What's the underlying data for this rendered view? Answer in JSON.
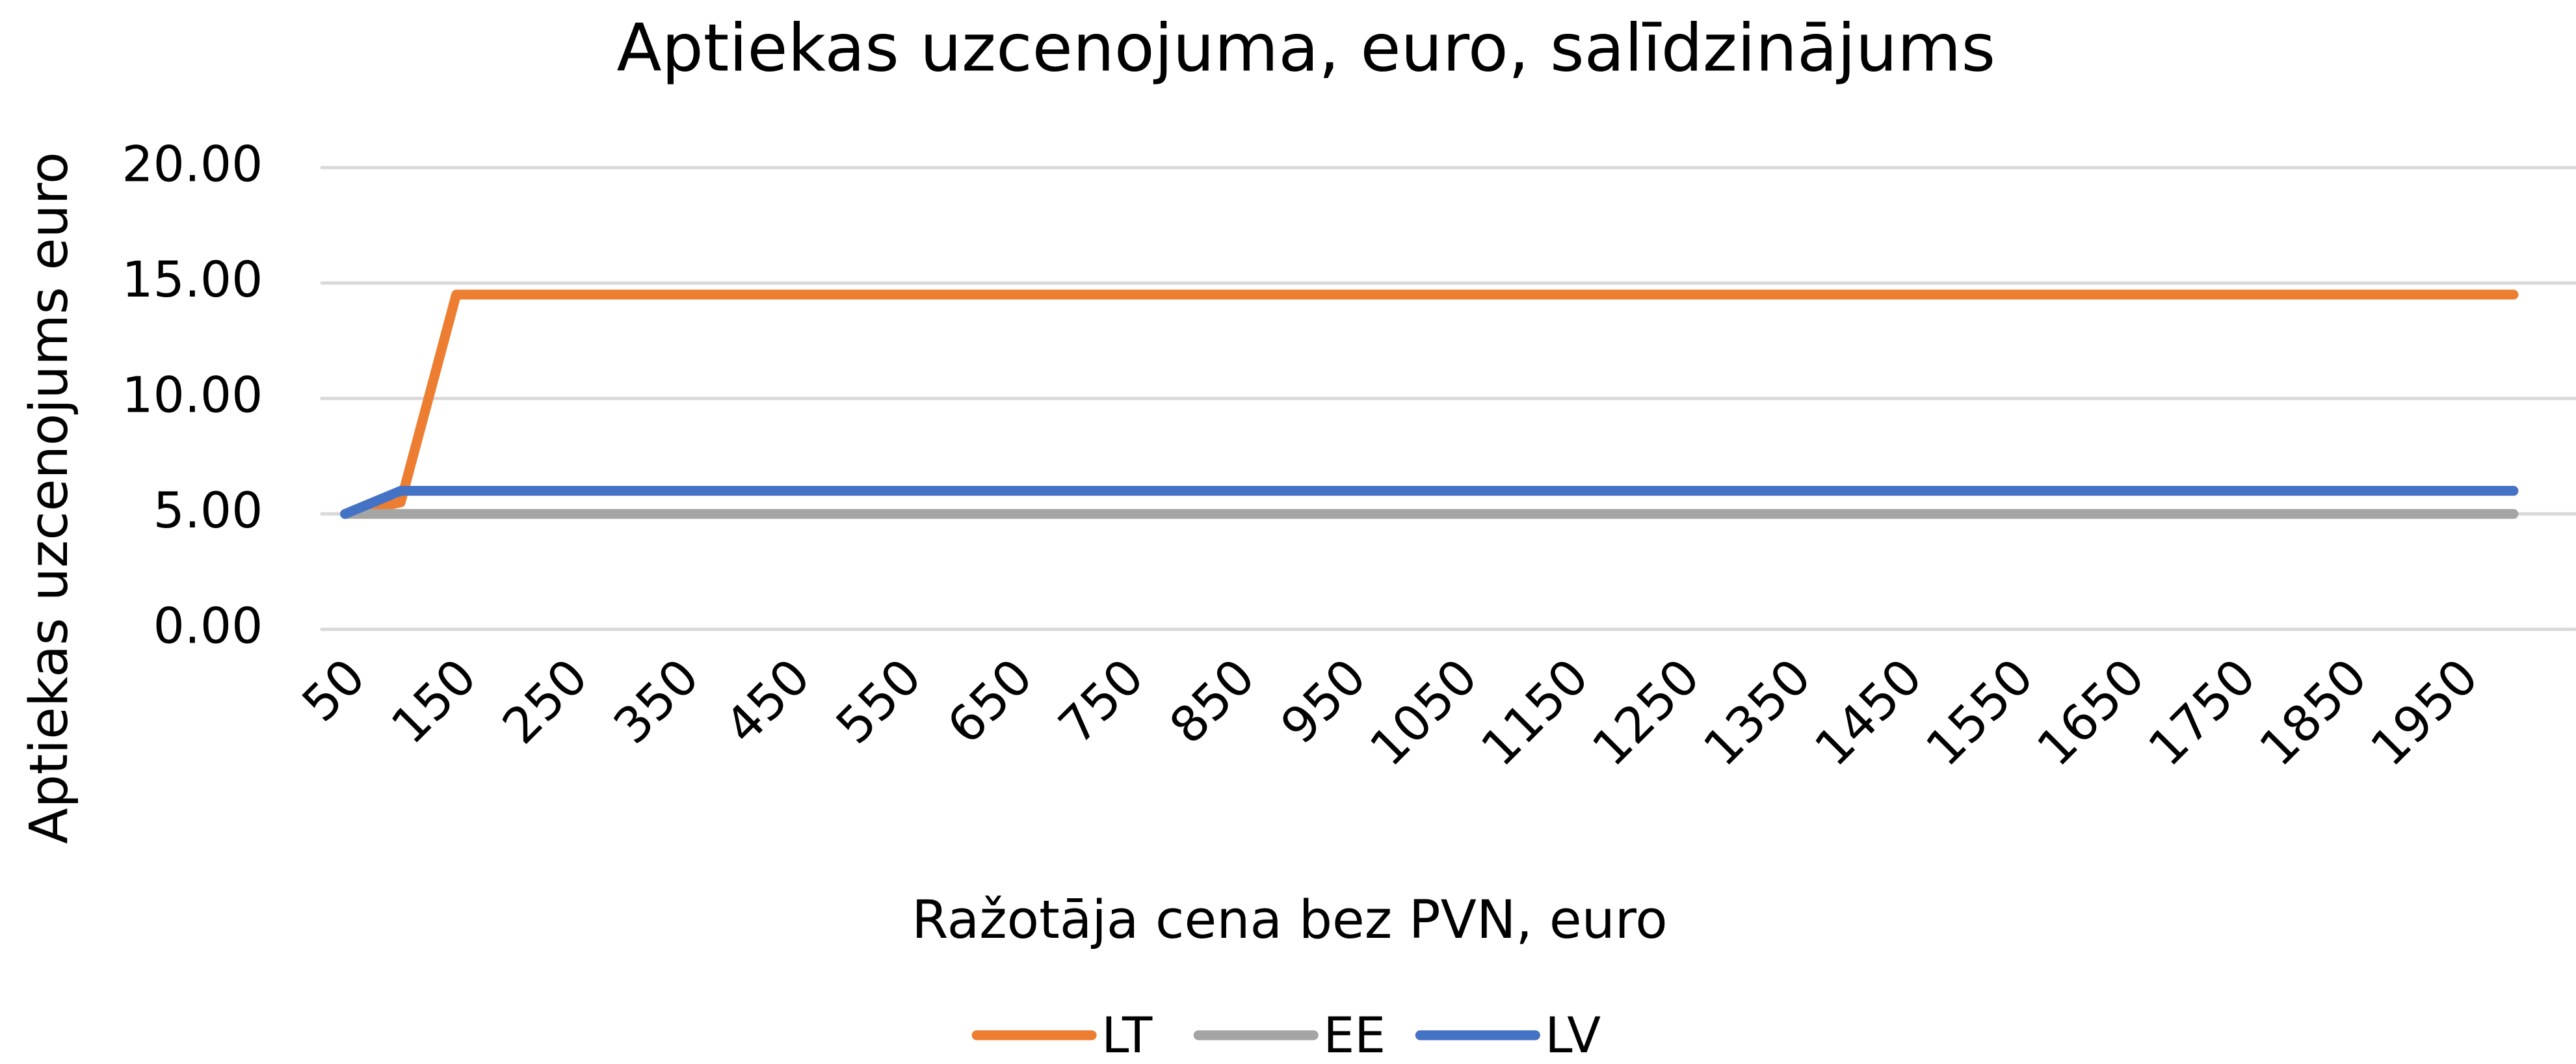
{
  "chart_data": {
    "type": "line",
    "title": "Aptiekas uzcenojuma, euro, salīdzinājums",
    "x_label": "Ražotāja cena bez PVN, euro",
    "y_label": "Aptiekas uzcenojums euro",
    "categories": [
      "50",
      null,
      "150",
      null,
      "250",
      null,
      "350",
      null,
      "450",
      null,
      "550",
      null,
      "650",
      null,
      "750",
      null,
      "850",
      null,
      "950",
      null,
      "1050",
      null,
      "1150",
      null,
      "1250",
      null,
      "1350",
      null,
      "1450",
      null,
      "1550",
      null,
      "1650",
      null,
      "1750",
      null,
      "1850",
      null,
      "1950",
      null
    ],
    "series": [
      {
        "name": "LT",
        "color": "#ED7D31",
        "values": [
          5.0,
          5.5,
          14.5,
          14.5,
          14.5,
          14.5,
          14.5,
          14.5,
          14.5,
          14.5,
          14.5,
          14.5,
          14.5,
          14.5,
          14.5,
          14.5,
          14.5,
          14.5,
          14.5,
          14.5,
          14.5,
          14.5,
          14.5,
          14.5,
          14.5,
          14.5,
          14.5,
          14.5,
          14.5,
          14.5,
          14.5,
          14.5,
          14.5,
          14.5,
          14.5,
          14.5,
          14.5,
          14.5,
          14.5,
          14.5
        ]
      },
      {
        "name": "EE",
        "color": "#A5A5A5",
        "values": [
          5.0,
          5.0,
          5.0,
          5.0,
          5.0,
          5.0,
          5.0,
          5.0,
          5.0,
          5.0,
          5.0,
          5.0,
          5.0,
          5.0,
          5.0,
          5.0,
          5.0,
          5.0,
          5.0,
          5.0,
          5.0,
          5.0,
          5.0,
          5.0,
          5.0,
          5.0,
          5.0,
          5.0,
          5.0,
          5.0,
          5.0,
          5.0,
          5.0,
          5.0,
          5.0,
          5.0,
          5.0,
          5.0,
          5.0,
          5.0
        ]
      },
      {
        "name": "LV",
        "color": "#4472C4",
        "values": [
          5.0,
          6.0,
          6.0,
          6.0,
          6.0,
          6.0,
          6.0,
          6.0,
          6.0,
          6.0,
          6.0,
          6.0,
          6.0,
          6.0,
          6.0,
          6.0,
          6.0,
          6.0,
          6.0,
          6.0,
          6.0,
          6.0,
          6.0,
          6.0,
          6.0,
          6.0,
          6.0,
          6.0,
          6.0,
          6.0,
          6.0,
          6.0,
          6.0,
          6.0,
          6.0,
          6.0,
          6.0,
          6.0,
          6.0,
          6.0
        ]
      }
    ],
    "ylim": [
      0,
      20
    ],
    "yticks": [
      {
        "value": 0,
        "label": "0.00"
      },
      {
        "value": 5,
        "label": "5.00"
      },
      {
        "value": 10,
        "label": "10.00"
      },
      {
        "value": 15,
        "label": "15.00"
      },
      {
        "value": 20,
        "label": "20.00"
      }
    ],
    "grid": true,
    "legend": "bottom"
  }
}
